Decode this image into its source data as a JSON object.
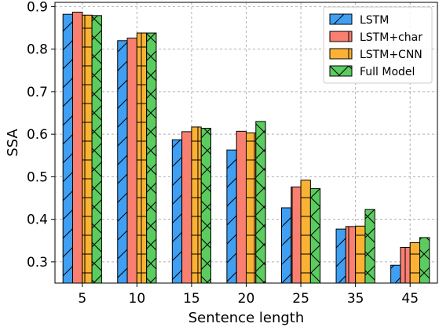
{
  "chart_data": {
    "type": "bar",
    "title": "",
    "xlabel": "Sentence length",
    "ylabel": "SSA",
    "categories": [
      "5",
      "10",
      "15",
      "20",
      "25",
      "35",
      "45"
    ],
    "ylim": [
      0.25,
      0.91
    ],
    "yticks": [
      "0.3",
      "0.4",
      "0.5",
      "0.6",
      "0.7",
      "0.8",
      "0.9"
    ],
    "grid": true,
    "legend_position": "top-right",
    "series": [
      {
        "name": "LSTM",
        "color": "#3f9ff2",
        "hatch": "slash",
        "values": [
          0.882,
          0.82,
          0.587,
          0.563,
          0.427,
          0.377,
          0.292
        ]
      },
      {
        "name": "LSTM+char",
        "color": "#f98070",
        "hatch": "vertical",
        "values": [
          0.887,
          0.826,
          0.606,
          0.607,
          0.476,
          0.383,
          0.334
        ]
      },
      {
        "name": "LSTM+CNN",
        "color": "#fbb234",
        "hatch": "grid",
        "values": [
          0.88,
          0.838,
          0.617,
          0.603,
          0.492,
          0.384,
          0.345
        ]
      },
      {
        "name": "Full Model",
        "color": "#5bcc5f",
        "hatch": "cross",
        "values": [
          0.879,
          0.838,
          0.614,
          0.63,
          0.472,
          0.423,
          0.357
        ]
      }
    ]
  }
}
